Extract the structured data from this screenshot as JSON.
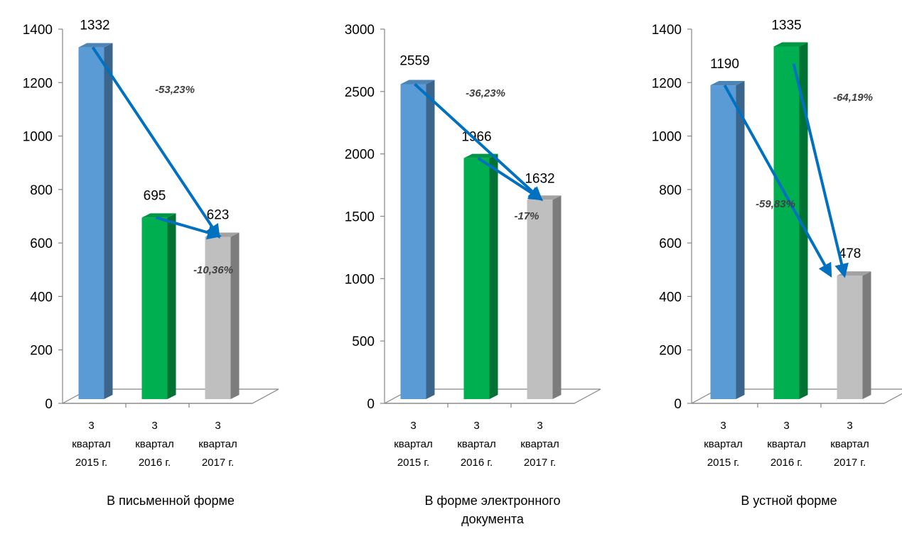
{
  "colors": {
    "bar_2015": "#5b9bd5",
    "bar_2016": "#00b050",
    "bar_2017": "#bfbfbf",
    "arrow": "#0070c0"
  },
  "chart_data": [
    {
      "type": "bar",
      "title": "В письменной форме",
      "categories": [
        [
          "3",
          "квартал",
          "2015 г."
        ],
        [
          "3",
          "квартал",
          "2016 г."
        ],
        [
          "3",
          "квартал",
          "2017 г."
        ]
      ],
      "values": [
        1332,
        695,
        623
      ],
      "yticks": [
        0,
        200,
        400,
        600,
        800,
        1000,
        1200,
        1400
      ],
      "ylim": [
        0,
        1400
      ],
      "grid": false,
      "annotations": [
        {
          "text": "-53,23%",
          "from": 0,
          "to": 2
        },
        {
          "text": "-10,36%",
          "from": 1,
          "to": 2
        }
      ]
    },
    {
      "type": "bar",
      "title": "В форме электронного документа",
      "categories": [
        [
          "3",
          "квартал",
          "2015 г."
        ],
        [
          "3",
          "квартал",
          "2016 г."
        ],
        [
          "3",
          "квартал",
          "2017 г."
        ]
      ],
      "values": [
        2559,
        1966,
        1632
      ],
      "yticks": [
        0,
        500,
        1000,
        1500,
        2000,
        2500,
        3000
      ],
      "ylim": [
        0,
        3000
      ],
      "grid": false,
      "annotations": [
        {
          "text": "-36,23%",
          "from": 0,
          "to": 2
        },
        {
          "text": "-17%",
          "from": 1,
          "to": 2
        }
      ]
    },
    {
      "type": "bar",
      "title": "В устной форме",
      "categories": [
        [
          "3",
          "квартал",
          "2015 г."
        ],
        [
          "3",
          "квартал",
          "2016 г."
        ],
        [
          "3",
          "квартал",
          "2017 г."
        ]
      ],
      "values": [
        1190,
        1335,
        478
      ],
      "yticks": [
        0,
        200,
        400,
        600,
        800,
        1000,
        1200,
        1400
      ],
      "ylim": [
        0,
        1400
      ],
      "grid": false,
      "annotations": [
        {
          "text": "-59,83%",
          "from": 0,
          "to": 2
        },
        {
          "text": "-64,19%",
          "from": 1,
          "to": 2
        }
      ]
    }
  ]
}
